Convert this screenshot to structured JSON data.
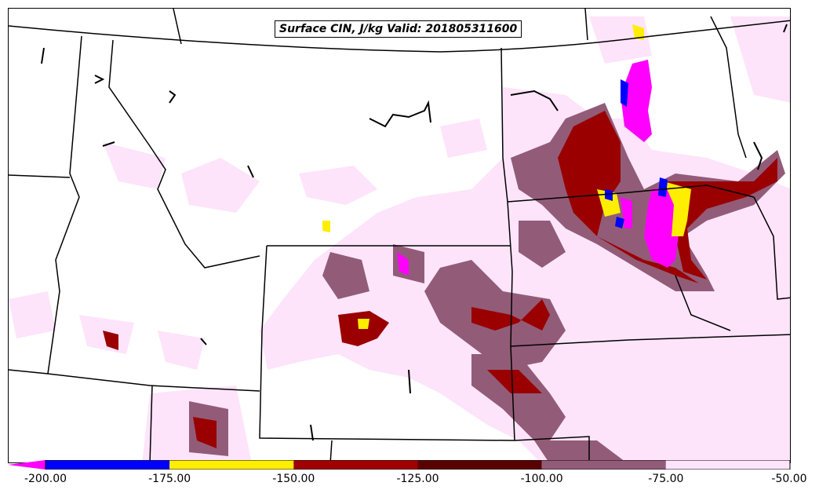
{
  "title": "Surface CIN, J/kg Valid: 201805311600",
  "colorbar": {
    "min": -200,
    "max": -50,
    "ticks": [
      "-200.00",
      "-175.00",
      "-150.00",
      "-125.00",
      "-100.00",
      "-75.00",
      "-50.00"
    ],
    "bins": [
      {
        "from": -200,
        "to": -175,
        "color": "#0000ff"
      },
      {
        "from": -175,
        "to": -150,
        "color": "#ffee00"
      },
      {
        "from": -150,
        "to": -125,
        "color": "#a00000"
      },
      {
        "from": -125,
        "to": -100,
        "color": "#5a0000"
      },
      {
        "from": -100,
        "to": -75,
        "color": "#925c78"
      },
      {
        "from": -75,
        "to": -50,
        "color": "#fde4fa"
      }
    ],
    "under_color": "#ff00ff"
  }
}
